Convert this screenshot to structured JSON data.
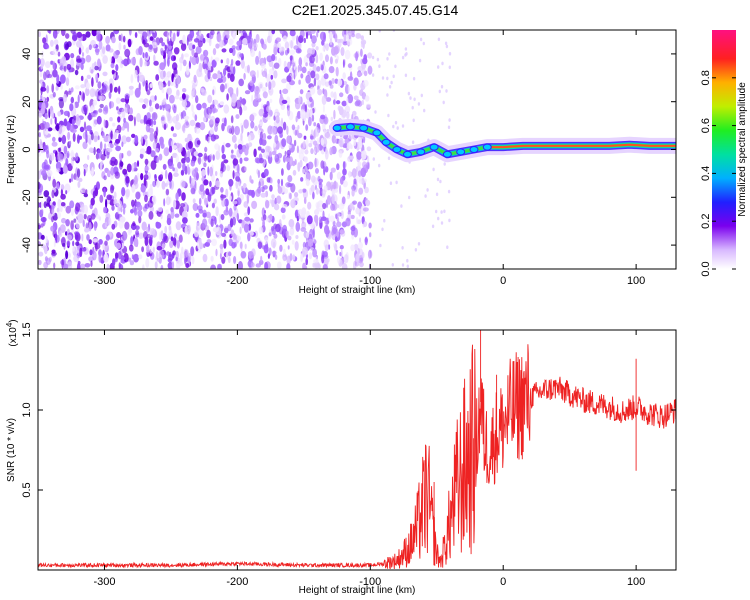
{
  "title": "C2E1.2025.345.07.45.G14",
  "colors": {
    "line": "#ee2222",
    "axis": "#000000"
  },
  "chart_data": [
    {
      "type": "heatmap",
      "xlabel": "Height of straight line (km)",
      "ylabel": "Frequency (Hz)",
      "xlim": [
        -350,
        130
      ],
      "ylim": [
        -50,
        50
      ],
      "xticks": [
        -300,
        -200,
        -100,
        0,
        100
      ],
      "xtick_labels": [
        "-300",
        "-200",
        "-100",
        "0",
        "100"
      ],
      "yticks": [
        -40,
        -20,
        0,
        20,
        40
      ],
      "ytick_labels": [
        "-40",
        "-20",
        "0",
        "20",
        "40"
      ],
      "noise_region": [
        -350,
        -100
      ],
      "ridge": [
        [
          -125,
          9
        ],
        [
          -115,
          9.5
        ],
        [
          -105,
          9
        ],
        [
          -95,
          7
        ],
        [
          -88,
          3
        ],
        [
          -80,
          0
        ],
        [
          -72,
          -2
        ],
        [
          -62,
          -1
        ],
        [
          -52,
          1
        ],
        [
          -42,
          -2
        ],
        [
          -32,
          -1
        ],
        [
          -22,
          0
        ],
        [
          -12,
          1
        ],
        [
          0,
          1
        ],
        [
          15,
          1.5
        ],
        [
          35,
          1.5
        ],
        [
          60,
          1.5
        ],
        [
          80,
          1.5
        ],
        [
          95,
          2
        ],
        [
          110,
          1.5
        ],
        [
          130,
          1.5
        ]
      ],
      "colorbar": {
        "label": "Normalized spectral amplitude",
        "ticks": [
          0.0,
          0.2,
          0.4,
          0.6,
          0.8
        ],
        "tick_labels": [
          "0.0",
          "0.2",
          "0.4",
          "0.6",
          "0.8"
        ],
        "range": [
          0,
          1
        ]
      }
    },
    {
      "type": "line",
      "xlabel": "Height of straight line (km)",
      "ylabel": "SNR (10 * v/v)",
      "scale_label": "(x10",
      "scale_exp": "4",
      "scale_close": ")",
      "xlim": [
        -350,
        130
      ],
      "ylim": [
        0,
        1.5
      ],
      "xticks": [
        -300,
        -200,
        -100,
        0,
        100
      ],
      "xtick_labels": [
        "-300",
        "-200",
        "-100",
        "0",
        "100"
      ],
      "yticks": [
        0.5,
        1.0,
        1.5
      ],
      "ytick_labels": [
        "0.5",
        "1.0",
        "1.5"
      ],
      "series": [
        {
          "name": "SNR",
          "x": [
            -350,
            -300,
            -250,
            -200,
            -150,
            -100,
            -90,
            -80,
            -75,
            -70,
            -65,
            -60,
            -57,
            -54,
            -50,
            -47,
            -44,
            -40,
            -35,
            -30,
            -25,
            -20,
            -17,
            -14,
            -10,
            -5,
            0,
            5,
            10,
            20,
            30,
            40,
            50,
            60,
            70,
            80,
            90,
            100,
            110,
            120,
            130
          ],
          "values": [
            0.03,
            0.03,
            0.03,
            0.04,
            0.03,
            0.03,
            0.04,
            0.06,
            0.1,
            0.15,
            0.25,
            0.4,
            0.5,
            0.3,
            0.1,
            0.05,
            0.15,
            0.3,
            0.5,
            0.62,
            0.72,
            0.8,
            1.05,
            0.8,
            0.75,
            0.85,
            0.9,
            0.98,
            1.02,
            1.08,
            1.12,
            1.14,
            1.1,
            1.06,
            1.04,
            1.02,
            0.99,
            1.02,
            0.98,
            0.96,
            1.0
          ]
        }
      ],
      "spikes": [
        {
          "x": -52,
          "value": 0.55
        },
        {
          "x": -17,
          "value": 1.5
        },
        {
          "x": -5,
          "value": 1.22
        },
        {
          "x": 100,
          "value": 1.32
        },
        {
          "x": 100,
          "value": 0.62
        }
      ]
    }
  ]
}
